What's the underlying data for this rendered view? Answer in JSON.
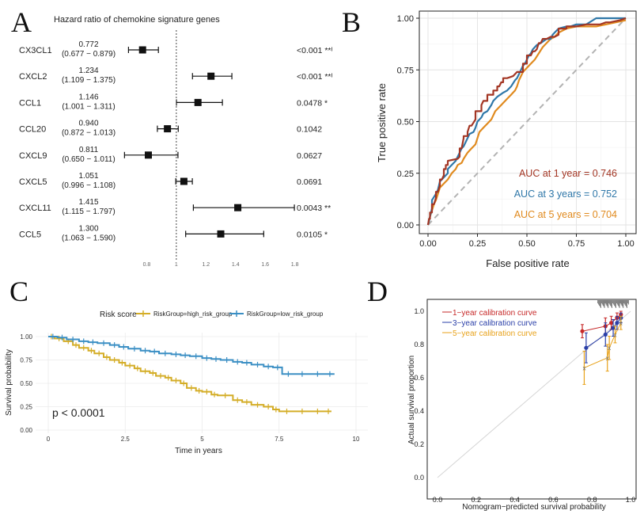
{
  "panels": {
    "A": {
      "letter": "A",
      "chart_title": "Hazard ratio of chemokine signature genes"
    },
    "B": {
      "letter": "B"
    },
    "C": {
      "letter": "C"
    },
    "D": {
      "letter": "D"
    }
  },
  "chart_data": [
    {
      "panel": "A",
      "type": "forest",
      "title": "Hazard ratio of chemokine signature genes",
      "xlim": [
        0.6,
        1.85
      ],
      "xticks": [
        0.8,
        1,
        1.2,
        1.4,
        1.6,
        1.8
      ],
      "xtick_labels": [
        "0.8",
        "1",
        "1.2",
        "1.4",
        "1.6",
        "1.8"
      ],
      "reference_line": 1,
      "rows": [
        {
          "gene": "CX3CL1",
          "hr": 0.772,
          "lo": 0.677,
          "hi": 0.879,
          "hr_label": "0.772",
          "ci_label": "(0.677 − 0.879)",
          "p_label": "<0.001 **ᴵ"
        },
        {
          "gene": "CXCL2",
          "hr": 1.234,
          "lo": 1.109,
          "hi": 1.375,
          "hr_label": "1.234",
          "ci_label": "(1.109 − 1.375)",
          "p_label": "<0.001 **ᴵ"
        },
        {
          "gene": "CCL1",
          "hr": 1.146,
          "lo": 1.001,
          "hi": 1.311,
          "hr_label": "1.146",
          "ci_label": "(1.001 − 1.311)",
          "p_label": "0.0478 *"
        },
        {
          "gene": "CCL20",
          "hr": 0.94,
          "lo": 0.872,
          "hi": 1.013,
          "hr_label": "0.940",
          "ci_label": "(0.872 − 1.013)",
          "p_label": "0.1042"
        },
        {
          "gene": "CXCL9",
          "hr": 0.811,
          "lo": 0.65,
          "hi": 1.011,
          "hr_label": "0.811",
          "ci_label": "(0.650 − 1.011)",
          "p_label": "0.0627"
        },
        {
          "gene": "CXCL5",
          "hr": 1.051,
          "lo": 0.996,
          "hi": 1.108,
          "hr_label": "1.051",
          "ci_label": "(0.996 − 1.108)",
          "p_label": "0.0691"
        },
        {
          "gene": "CXCL11",
          "hr": 1.415,
          "lo": 1.115,
          "hi": 1.797,
          "hr_label": "1.415",
          "ci_label": "(1.115 − 1.797)",
          "p_label": "0.0043 **"
        },
        {
          "gene": "CCL5",
          "hr": 1.3,
          "lo": 1.063,
          "hi": 1.59,
          "hr_label": "1.300",
          "ci_label": "(1.063 − 1.590)",
          "p_label": "0.0105 *"
        }
      ]
    },
    {
      "panel": "B",
      "type": "line",
      "title": "",
      "xlabel": "False positive rate",
      "ylabel": "True positive rate",
      "xlim": [
        0,
        1
      ],
      "ylim": [
        0,
        1
      ],
      "xticks": [
        "0.00",
        "0.25",
        "0.50",
        "0.75",
        "1.00"
      ],
      "yticks": [
        "0.00",
        "0.25",
        "0.50",
        "0.75",
        "1.00"
      ],
      "grid": true,
      "diagonal_reference": true,
      "series": [
        {
          "name": "AUC at 1 year = 0.746",
          "color": "#a33624",
          "x": [
            0,
            0.005,
            0.01,
            0.01,
            0.02,
            0.02,
            0.03,
            0.04,
            0.04,
            0.05,
            0.06,
            0.06,
            0.07,
            0.08,
            0.08,
            0.09,
            0.09,
            0.1,
            0.1,
            0.1,
            0.15,
            0.16,
            0.16,
            0.17,
            0.18,
            0.18,
            0.2,
            0.2,
            0.21,
            0.22,
            0.24,
            0.24,
            0.27,
            0.27,
            0.28,
            0.3,
            0.3,
            0.33,
            0.33,
            0.35,
            0.35,
            0.36,
            0.37,
            0.38,
            0.38,
            0.4,
            0.43,
            0.45,
            0.47,
            0.48,
            0.48,
            0.5,
            0.5,
            0.52,
            0.53,
            0.54,
            0.55,
            0.56,
            0.57,
            0.58,
            0.6,
            0.62,
            0.64,
            0.66,
            0.66,
            0.7,
            0.7,
            0.75,
            0.8,
            0.83,
            0.87,
            0.9,
            0.92,
            0.97,
            1
          ],
          "y": [
            0,
            0.03,
            0.03,
            0.06,
            0.06,
            0.1,
            0.1,
            0.13,
            0.16,
            0.16,
            0.19,
            0.22,
            0.22,
            0.24,
            0.27,
            0.27,
            0.29,
            0.29,
            0.29,
            0.31,
            0.32,
            0.33,
            0.37,
            0.37,
            0.42,
            0.43,
            0.43,
            0.45,
            0.48,
            0.48,
            0.51,
            0.55,
            0.55,
            0.58,
            0.6,
            0.6,
            0.63,
            0.63,
            0.65,
            0.65,
            0.67,
            0.67,
            0.69,
            0.69,
            0.71,
            0.71,
            0.72,
            0.74,
            0.74,
            0.74,
            0.78,
            0.78,
            0.82,
            0.82,
            0.84,
            0.84,
            0.85,
            0.88,
            0.88,
            0.9,
            0.9,
            0.91,
            0.91,
            0.92,
            0.95,
            0.95,
            0.96,
            0.96,
            0.97,
            0.97,
            0.97,
            0.98,
            0.98,
            0.99,
            1
          ]
        },
        {
          "name": "AUC at 3 years = 0.752",
          "color": "#2f77a8",
          "x": [
            0,
            0.005,
            0.01,
            0.02,
            0.02,
            0.04,
            0.05,
            0.06,
            0.08,
            0.1,
            0.1,
            0.12,
            0.14,
            0.15,
            0.16,
            0.17,
            0.18,
            0.19,
            0.2,
            0.21,
            0.23,
            0.24,
            0.25,
            0.27,
            0.28,
            0.3,
            0.32,
            0.33,
            0.35,
            0.38,
            0.4,
            0.42,
            0.44,
            0.45,
            0.46,
            0.47,
            0.48,
            0.49,
            0.5,
            0.51,
            0.52,
            0.53,
            0.55,
            0.57,
            0.6,
            0.62,
            0.63,
            0.64,
            0.66,
            0.7,
            0.72,
            0.75,
            0.8,
            0.85,
            0.9,
            0.96,
            1
          ],
          "y": [
            0,
            0.02,
            0.04,
            0.08,
            0.12,
            0.15,
            0.17,
            0.21,
            0.23,
            0.25,
            0.27,
            0.29,
            0.31,
            0.33,
            0.35,
            0.37,
            0.38,
            0.4,
            0.42,
            0.44,
            0.45,
            0.47,
            0.5,
            0.52,
            0.54,
            0.55,
            0.58,
            0.6,
            0.62,
            0.64,
            0.65,
            0.67,
            0.7,
            0.71,
            0.73,
            0.75,
            0.77,
            0.78,
            0.8,
            0.82,
            0.83,
            0.85,
            0.87,
            0.88,
            0.9,
            0.9,
            0.92,
            0.93,
            0.95,
            0.96,
            0.96,
            0.97,
            0.97,
            1,
            1,
            1,
            1
          ]
        },
        {
          "name": "AUC at 5 years = 0.704",
          "color": "#e08a1e",
          "x": [
            0,
            0.005,
            0.01,
            0.02,
            0.03,
            0.04,
            0.05,
            0.06,
            0.08,
            0.1,
            0.12,
            0.14,
            0.15,
            0.17,
            0.18,
            0.2,
            0.22,
            0.24,
            0.25,
            0.26,
            0.28,
            0.3,
            0.32,
            0.33,
            0.34,
            0.36,
            0.38,
            0.4,
            0.42,
            0.44,
            0.45,
            0.46,
            0.47,
            0.48,
            0.5,
            0.52,
            0.54,
            0.56,
            0.58,
            0.6,
            0.62,
            0.64,
            0.66,
            0.68,
            0.7,
            0.75,
            0.8,
            0.85,
            0.9,
            0.95,
            1
          ],
          "y": [
            0,
            0.02,
            0.04,
            0.07,
            0.1,
            0.12,
            0.15,
            0.18,
            0.2,
            0.22,
            0.25,
            0.27,
            0.29,
            0.3,
            0.32,
            0.35,
            0.37,
            0.39,
            0.42,
            0.45,
            0.47,
            0.49,
            0.51,
            0.53,
            0.55,
            0.57,
            0.59,
            0.61,
            0.63,
            0.65,
            0.67,
            0.7,
            0.72,
            0.74,
            0.76,
            0.78,
            0.8,
            0.83,
            0.86,
            0.88,
            0.9,
            0.91,
            0.93,
            0.94,
            0.95,
            0.96,
            0.96,
            0.96,
            0.97,
            0.98,
            0.99
          ]
        },
        {
          "name": "reference",
          "color": "#b3b3b3",
          "x": [
            0,
            1
          ],
          "y": [
            0,
            1
          ]
        }
      ]
    },
    {
      "panel": "C",
      "type": "line",
      "title": "",
      "legend_title": "Risk score",
      "xlabel": "Time in years",
      "ylabel": "Survival probability",
      "xlim": [
        0,
        10
      ],
      "ylim": [
        0,
        1
      ],
      "xticks": [
        "0",
        "2.5",
        "5",
        "7.5",
        "10"
      ],
      "yticks": [
        "0.00",
        "0.25",
        "0.50",
        "0.75",
        "1.00"
      ],
      "grid": true,
      "annotation": "p < 0.0001",
      "series": [
        {
          "name": "RiskGroup=high_risk_group",
          "color": "#d4ad27",
          "x": [
            0,
            0.2,
            0.5,
            0.8,
            1,
            1.3,
            1.5,
            1.8,
            2,
            2.3,
            2.5,
            2.8,
            3,
            3.3,
            3.5,
            3.8,
            4,
            4.3,
            4.5,
            4.8,
            5,
            5.3,
            5.5,
            6,
            6.3,
            6.6,
            7,
            7.3,
            7.5,
            8,
            8.5,
            9,
            9.2
          ],
          "y": [
            1,
            0.98,
            0.95,
            0.91,
            0.88,
            0.85,
            0.82,
            0.78,
            0.75,
            0.72,
            0.69,
            0.66,
            0.63,
            0.61,
            0.58,
            0.56,
            0.53,
            0.5,
            0.45,
            0.42,
            0.41,
            0.38,
            0.37,
            0.32,
            0.3,
            0.27,
            0.25,
            0.22,
            0.2,
            0.2,
            0.2,
            0.2,
            0.2
          ]
        },
        {
          "name": "RiskGroup=low_risk_group",
          "color": "#3b8fc4",
          "x": [
            0,
            0.3,
            0.6,
            1,
            1.3,
            1.6,
            2,
            2.3,
            2.6,
            3,
            3.3,
            3.6,
            4,
            4.3,
            4.6,
            5,
            5.3,
            5.6,
            6,
            6.3,
            6.6,
            7,
            7.3,
            7.6,
            8,
            8.5,
            9,
            9.3
          ],
          "y": [
            1,
            0.99,
            0.97,
            0.95,
            0.94,
            0.93,
            0.91,
            0.89,
            0.87,
            0.85,
            0.84,
            0.82,
            0.81,
            0.8,
            0.79,
            0.77,
            0.76,
            0.75,
            0.73,
            0.72,
            0.7,
            0.68,
            0.67,
            0.6,
            0.6,
            0.6,
            0.6,
            0.6
          ]
        }
      ]
    },
    {
      "panel": "D",
      "type": "scatter",
      "title": "",
      "xlabel": "Nomogram−predicted survival probability",
      "ylabel": "Actual survival proportion",
      "xlim": [
        0,
        1
      ],
      "ylim": [
        0,
        1
      ],
      "xticks": [
        "0.0",
        "0.2",
        "0.4",
        "0.6",
        "0.8",
        "1.0"
      ],
      "yticks": [
        "0.0",
        "0.2",
        "0.4",
        "0.6",
        "0.8",
        "1.0"
      ],
      "diagonal_reference": true,
      "series": [
        {
          "name": "1−year calibration curve",
          "color": "#c62828",
          "x": [
            0.75,
            0.87,
            0.9,
            0.93,
            0.95
          ],
          "y": [
            0.88,
            0.91,
            0.93,
            0.96,
            0.98
          ],
          "err": [
            0.04,
            0.05,
            0.04,
            0.03,
            0.02
          ]
        },
        {
          "name": "3−year calibration curve",
          "color": "#2a3fa8",
          "x": [
            0.77,
            0.87,
            0.91,
            0.93,
            0.95
          ],
          "y": [
            0.78,
            0.86,
            0.9,
            0.93,
            0.96
          ],
          "err": [
            0.09,
            0.07,
            0.05,
            0.04,
            0.03
          ]
        },
        {
          "name": "5−year calibration curve",
          "color": "#e8a21a",
          "x": [
            0.76,
            0.88,
            0.89,
            0.92,
            0.95
          ],
          "y": [
            0.66,
            0.72,
            0.78,
            0.86,
            0.93
          ],
          "err": [
            0.1,
            0.08,
            0.07,
            0.05,
            0.04
          ]
        }
      ]
    }
  ]
}
